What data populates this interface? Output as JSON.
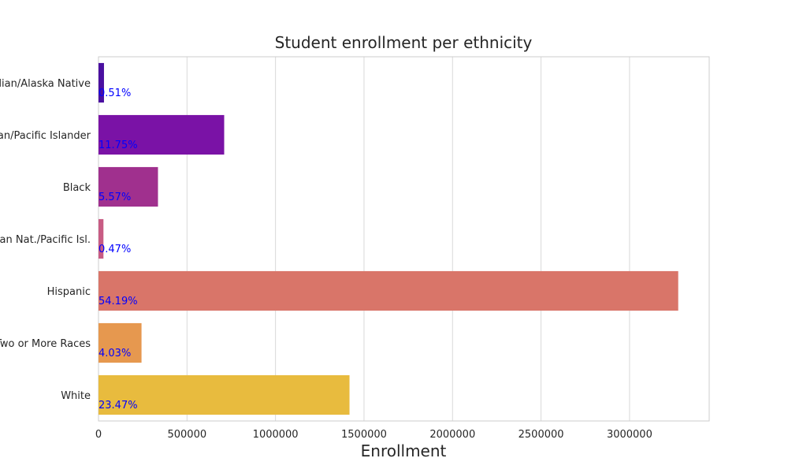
{
  "chart_data": {
    "type": "bar",
    "orientation": "horizontal",
    "title": "Student enrollment per ethnicity",
    "xlabel": "Enrollment",
    "ylabel": "",
    "categories": [
      "American Indian/Alaska Native",
      "Asian/Pacific Islander",
      "Black",
      "Hawaiian Nat./Pacific Isl.",
      "Hispanic",
      "Two or More Races",
      "White"
    ],
    "values": [
      31000,
      710000,
      336000,
      28000,
      3275000,
      243000,
      1418000
    ],
    "percent_labels": [
      "0.51%",
      "11.75%",
      "5.57%",
      "0.47%",
      "54.19%",
      "4.03%",
      "23.47%"
    ],
    "bar_colors": [
      "#4a0fa0",
      "#7a12a6",
      "#a0308e",
      "#c85c84",
      "#d97569",
      "#e6984f",
      "#e8bb3e"
    ],
    "label_color": "#0000ff",
    "xlim": [
      0,
      3450000
    ],
    "xticks": [
      0,
      500000,
      1000000,
      1500000,
      2000000,
      2500000,
      3000000
    ],
    "xtick_labels": [
      "0",
      "500000",
      "1000000",
      "1500000",
      "2000000",
      "2500000",
      "3000000"
    ],
    "grid": true
  }
}
